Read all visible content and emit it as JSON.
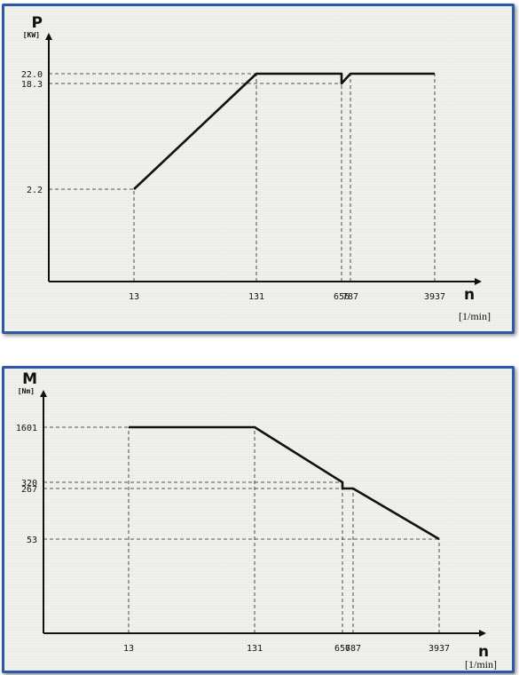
{
  "chart_data": [
    {
      "type": "line",
      "ylabel": "P",
      "yunit": "[KW]",
      "xlabel": "n",
      "xunit": "[1/min]",
      "xticks": [
        "13",
        "131",
        "656",
        "787",
        "3937"
      ],
      "yticks": [
        "2.2",
        "18.3",
        "22.0"
      ],
      "series": [
        {
          "points": [
            {
              "x": "13",
              "y": 2.2
            },
            {
              "x": "131",
              "y": 22.0
            },
            {
              "x": "656",
              "y": 22.0
            },
            {
              "x": "656",
              "y": 18.3
            },
            {
              "x": "787",
              "y": 22.0
            },
            {
              "x": "3937",
              "y": 22.0
            }
          ]
        }
      ]
    },
    {
      "type": "line",
      "ylabel": "M",
      "yunit": "[Nm]",
      "xlabel": "n",
      "xunit": "[1/min]",
      "xticks": [
        "13",
        "131",
        "656",
        "787",
        "3937"
      ],
      "yticks": [
        "53",
        "267",
        "320",
        "1601"
      ],
      "series": [
        {
          "points": [
            {
              "x": "13",
              "y": 1601
            },
            {
              "x": "131",
              "y": 1601
            },
            {
              "x": "656",
              "y": 320
            },
            {
              "x": "656",
              "y": 267
            },
            {
              "x": "787",
              "y": 267
            },
            {
              "x": "3937",
              "y": 53
            }
          ]
        }
      ]
    }
  ]
}
